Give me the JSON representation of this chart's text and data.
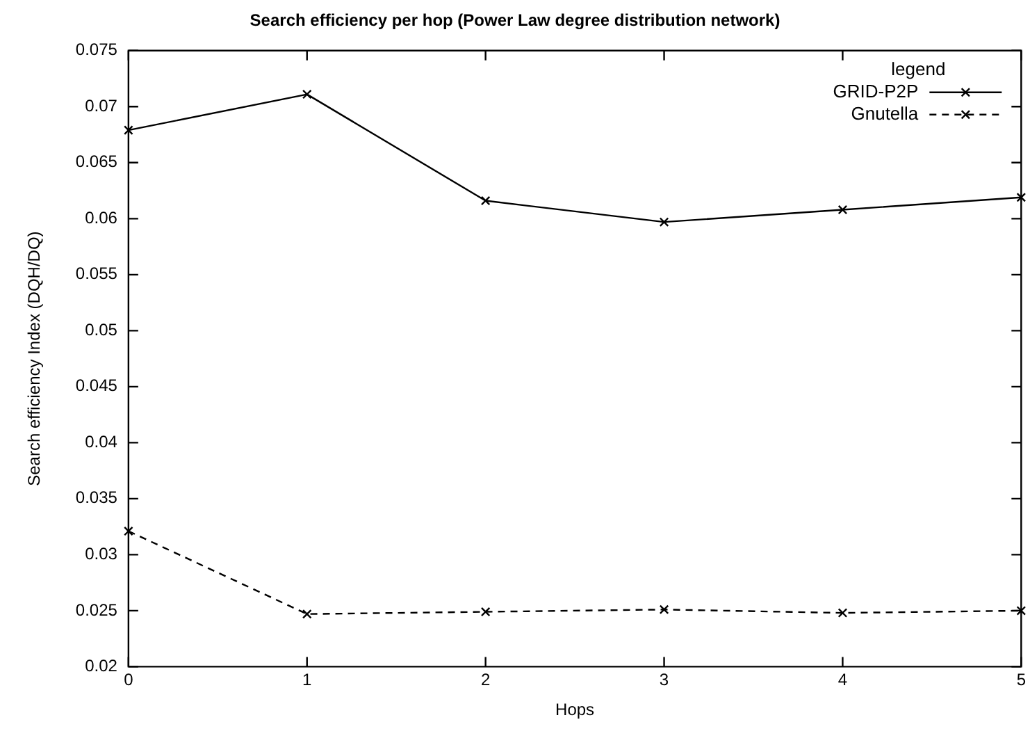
{
  "chart_data": {
    "type": "line",
    "title": "Search efficiency per hop (Power Law degree distribution network)",
    "xlabel": "Hops",
    "ylabel": "Search efficiency Index (DQH/DQ)",
    "legend_title": "legend",
    "x": [
      0,
      1,
      2,
      3,
      4,
      5
    ],
    "series": [
      {
        "name": "GRID-P2P",
        "color": "#000000",
        "line_style": "solid",
        "values": [
          0.0679,
          0.0711,
          0.0616,
          0.0597,
          0.0608,
          0.0619
        ]
      },
      {
        "name": "Gnutella",
        "color": "#000000",
        "line_style": "dashed",
        "values": [
          0.0321,
          0.0247,
          0.0249,
          0.0251,
          0.0248,
          0.025
        ]
      }
    ],
    "xlim": [
      0,
      5
    ],
    "xticks": [
      0,
      1,
      2,
      3,
      4,
      5
    ],
    "ylim": [
      0.02,
      0.075
    ],
    "yticks": [
      0.02,
      0.025,
      0.03,
      0.035,
      0.04,
      0.045,
      0.05,
      0.055,
      0.06,
      0.065,
      0.07,
      0.075
    ],
    "grid": false,
    "legend": "top right",
    "marker": "cross"
  }
}
